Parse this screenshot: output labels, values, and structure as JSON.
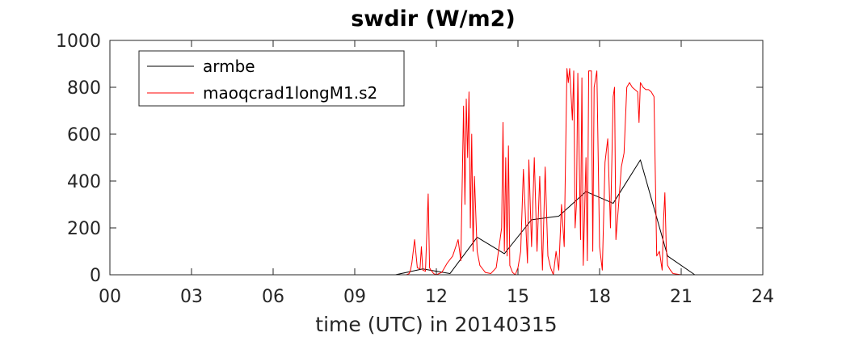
{
  "chart_data": {
    "type": "line",
    "title": "swdir  (W/m2)",
    "xlabel": "time (UTC) in 20140315",
    "ylabel": "",
    "xlim": [
      0,
      24
    ],
    "ylim": [
      0,
      1000
    ],
    "x_ticks": [
      0,
      3,
      6,
      9,
      12,
      15,
      18,
      21,
      24
    ],
    "x_tick_labels": [
      "00",
      "03",
      "06",
      "09",
      "12",
      "15",
      "18",
      "21",
      "24"
    ],
    "y_ticks": [
      0,
      200,
      400,
      600,
      800,
      1000
    ],
    "y_tick_labels": [
      "0",
      "200",
      "400",
      "600",
      "800",
      "1000"
    ],
    "grid": false,
    "legend_position": "top-left",
    "series": [
      {
        "name": "armbe",
        "color": "#000000",
        "x": [
          0,
          10.5,
          11.5,
          12.5,
          13.5,
          14.5,
          15.5,
          16.5,
          17.5,
          18.5,
          19.5,
          20.5,
          21.5,
          24
        ],
        "y": [
          0,
          0,
          25,
          5,
          160,
          90,
          235,
          250,
          355,
          305,
          490,
          80,
          0,
          0
        ]
      },
      {
        "name": "maoqcrad1longM1.s2",
        "color": "#ff0000",
        "x": [
          0,
          10.9,
          11.0,
          11.05,
          11.1,
          11.2,
          11.3,
          11.4,
          11.45,
          11.5,
          11.6,
          11.7,
          11.75,
          11.8,
          11.9,
          12.0,
          12.2,
          12.4,
          12.6,
          12.8,
          12.9,
          13.0,
          13.05,
          13.1,
          13.15,
          13.2,
          13.25,
          13.3,
          13.35,
          13.4,
          13.5,
          13.6,
          13.7,
          13.8,
          14.0,
          14.2,
          14.4,
          14.45,
          14.5,
          14.55,
          14.6,
          14.65,
          14.7,
          14.75,
          14.8,
          14.9,
          15.0,
          15.1,
          15.2,
          15.3,
          15.35,
          15.4,
          15.5,
          15.6,
          15.7,
          15.8,
          15.9,
          16.0,
          16.1,
          16.2,
          16.3,
          16.4,
          16.5,
          16.6,
          16.7,
          16.8,
          16.85,
          16.9,
          17.0,
          17.05,
          17.1,
          17.15,
          17.2,
          17.3,
          17.35,
          17.4,
          17.5,
          17.55,
          17.6,
          17.7,
          17.75,
          17.8,
          17.9,
          18.0,
          18.1,
          18.2,
          18.3,
          18.4,
          18.5,
          18.55,
          18.6,
          18.7,
          18.8,
          18.9,
          19.0,
          19.1,
          19.2,
          19.3,
          19.4,
          19.45,
          19.5,
          19.6,
          19.7,
          19.8,
          19.9,
          20.0,
          20.1,
          20.2,
          20.3,
          20.35,
          20.4,
          20.45,
          20.5,
          20.6,
          20.7,
          21.0,
          24
        ],
        "y": [
          0,
          0,
          5,
          20,
          50,
          150,
          30,
          25,
          120,
          20,
          15,
          345,
          30,
          20,
          5,
          0,
          10,
          50,
          80,
          150,
          60,
          720,
          300,
          750,
          500,
          780,
          200,
          600,
          100,
          420,
          100,
          40,
          25,
          10,
          5,
          30,
          200,
          650,
          100,
          500,
          80,
          550,
          40,
          25,
          10,
          0,
          30,
          100,
          450,
          180,
          50,
          490,
          120,
          500,
          100,
          420,
          20,
          460,
          80,
          30,
          0,
          100,
          20,
          300,
          120,
          880,
          820,
          880,
          660,
          870,
          200,
          300,
          860,
          150,
          840,
          40,
          500,
          60,
          870,
          870,
          100,
          800,
          870,
          120,
          20,
          480,
          580,
          200,
          760,
          800,
          150,
          300,
          460,
          520,
          800,
          820,
          800,
          790,
          780,
          650,
          820,
          800,
          790,
          790,
          780,
          760,
          80,
          100,
          20,
          230,
          350,
          120,
          40,
          20,
          5,
          0,
          0
        ]
      }
    ]
  }
}
